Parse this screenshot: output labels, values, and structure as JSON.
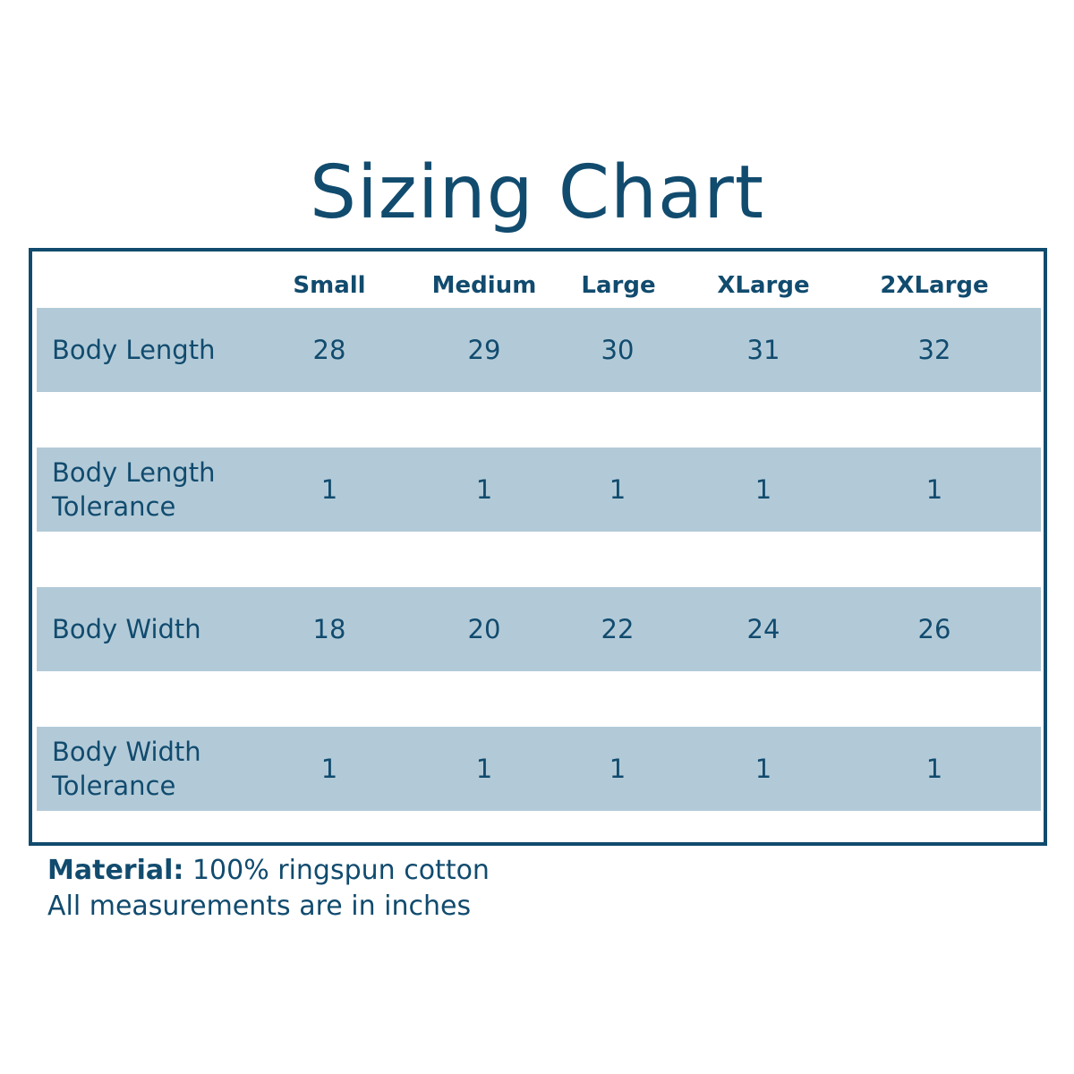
{
  "title": "Sizing Chart",
  "table": {
    "headers": [
      "Small",
      "Medium",
      "Large",
      "XLarge",
      "2XLarge"
    ],
    "rows": [
      {
        "label": "Body Length",
        "values": [
          "28",
          "29",
          "30",
          "31",
          "32"
        ]
      },
      {
        "label": "Body Length Tolerance",
        "values": [
          "1",
          "1",
          "1",
          "1",
          "1"
        ]
      },
      {
        "label": "Body Width",
        "values": [
          "18",
          "20",
          "22",
          "24",
          "26"
        ]
      },
      {
        "label": "Body Width Tolerance",
        "values": [
          "1",
          "1",
          "1",
          "1",
          "1"
        ]
      }
    ]
  },
  "footer": {
    "material_label": "Material:",
    "material_value": "100% ringspun cotton",
    "note": "All measurements are in inches"
  },
  "colors": {
    "text": "#114b6e",
    "border": "#114b6e",
    "row_fill": "#b2cad8",
    "background": "#ffffff"
  }
}
